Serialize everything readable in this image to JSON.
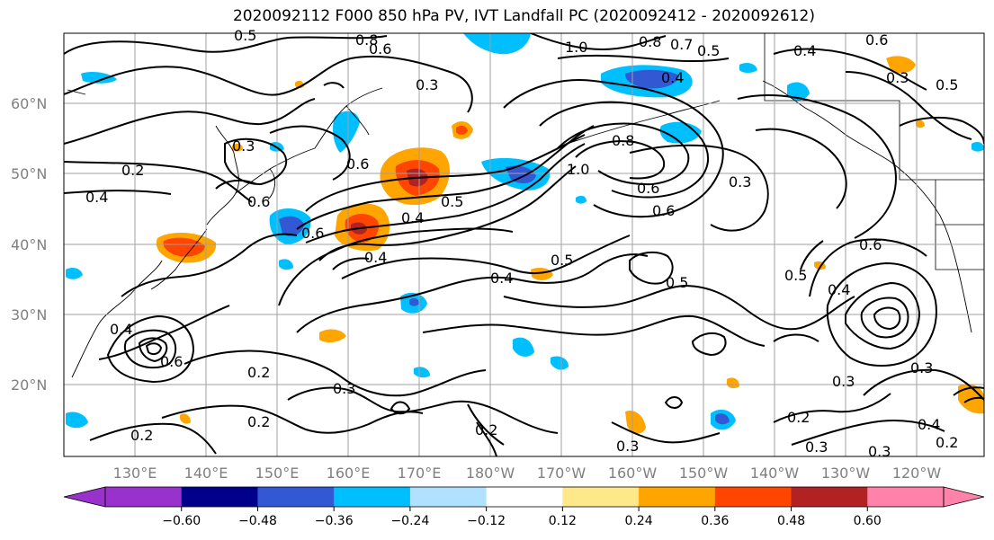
{
  "title": "2020092112 F000 850 hPa PV, IVT Landfall PC (2020092412 - 2020092612)",
  "lat_labels": [
    "60°N",
    "50°N",
    "40°N",
    "30°N",
    "20°N"
  ],
  "lon_labels": [
    "130°E",
    "140°E",
    "150°E",
    "160°E",
    "170°E",
    "180°W",
    "170°W",
    "160°W",
    "150°W",
    "140°W",
    "130°W",
    "120°W"
  ],
  "contour_labels": [
    "0.5",
    "0.8",
    "0.6",
    "1.0",
    "0.8",
    "0.7",
    "0.5",
    "0.4",
    "0.4",
    "0.6",
    "0.3",
    "0.3",
    "0.5",
    "0.2",
    "0.4",
    "0.6",
    "0.3",
    "0.6",
    "0.6",
    "0.4",
    "0.5",
    "0.8",
    "1.0",
    "0.6",
    "0.3",
    "0.6",
    "0.5",
    "0.4",
    "0.5",
    "0.6",
    "0.5",
    "0.4",
    "0.4",
    "0.6",
    "0.4",
    "0.2",
    "0.3",
    "0.2",
    "0.3",
    "0.2",
    "0.3",
    "0.2",
    "0.3",
    "0.3",
    "0.2",
    "0.3",
    "0.4",
    "0.2"
  ],
  "colorbar": {
    "colors": [
      "#9932cc",
      "#00008b",
      "#3358d4",
      "#00bfff",
      "#b0e2ff",
      "#ffffff",
      "#ffe88a",
      "#ffa500",
      "#ff4500",
      "#b22222",
      "#ff82ab"
    ],
    "ticks": [
      "−0.60",
      "−0.48",
      "−0.36",
      "−0.24",
      "−0.12",
      "0.12",
      "0.24",
      "0.36",
      "0.48",
      "0.60"
    ]
  }
}
